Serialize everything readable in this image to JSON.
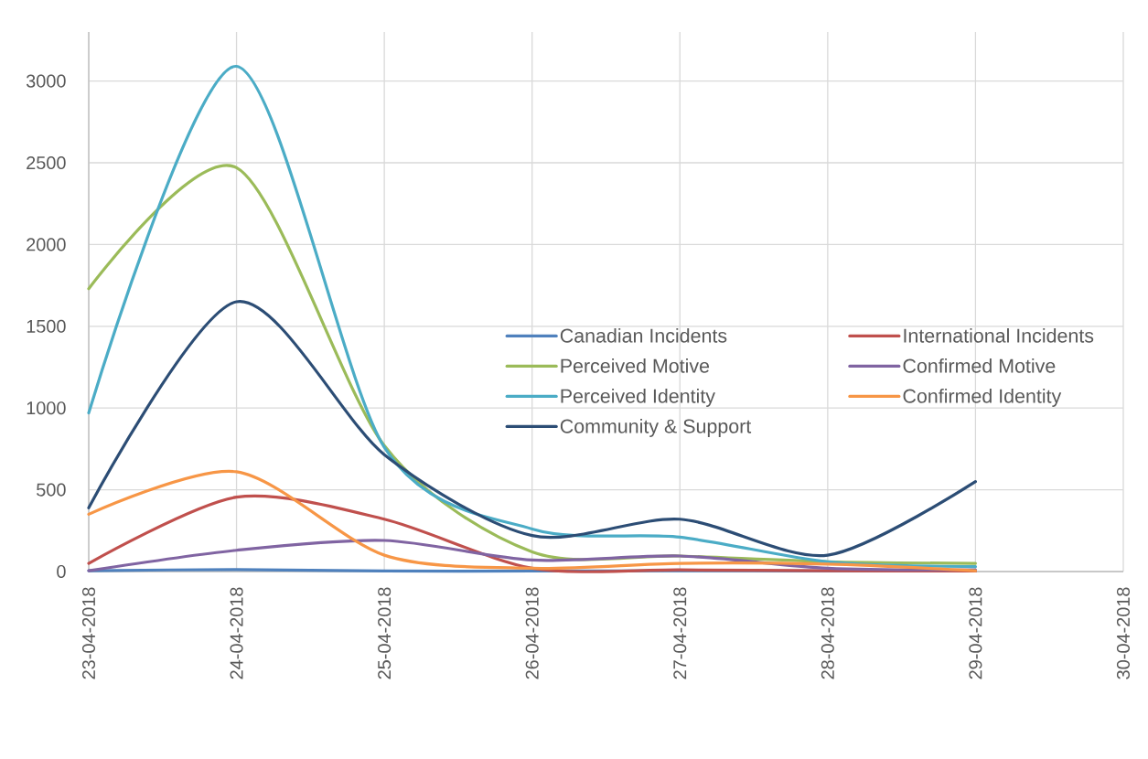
{
  "chart_data": {
    "type": "line",
    "x": [
      "2018-04-23",
      "2018-04-24",
      "2018-04-25",
      "2018-04-26",
      "2018-04-27",
      "2018-04-28",
      "2018-04-29"
    ],
    "series": [
      {
        "name": "Canadian Incidents",
        "color": "#4f81bd",
        "values": [
          5,
          12,
          3,
          3,
          5,
          3,
          3
        ]
      },
      {
        "name": "International Incidents",
        "color": "#c0504d",
        "values": [
          50,
          455,
          320,
          20,
          10,
          5,
          3
        ]
      },
      {
        "name": "Perceived Motive",
        "color": "#9bbb59",
        "values": [
          1730,
          2470,
          770,
          120,
          95,
          60,
          50
        ]
      },
      {
        "name": "Confirmed Motive",
        "color": "#8064a2",
        "values": [
          5,
          130,
          190,
          70,
          95,
          20,
          10
        ]
      },
      {
        "name": "Perceived Identity",
        "color": "#4bacc6",
        "values": [
          970,
          3090,
          760,
          260,
          210,
          60,
          30
        ]
      },
      {
        "name": "Confirmed Identity",
        "color": "#f79646",
        "values": [
          350,
          610,
          100,
          20,
          50,
          45,
          5
        ]
      },
      {
        "name": "Community & Support",
        "color": "#2c4d75",
        "values": [
          390,
          1650,
          715,
          220,
          320,
          100,
          550
        ]
      }
    ],
    "xlim": [
      "2018-04-23",
      "2018-04-30"
    ],
    "xticks": [
      {
        "value": "2018-04-23",
        "label": "23-04-2018"
      },
      {
        "value": "2018-04-24",
        "label": "24-04-2018"
      },
      {
        "value": "2018-04-25",
        "label": "25-04-2018"
      },
      {
        "value": "2018-04-26",
        "label": "26-04-2018"
      },
      {
        "value": "2018-04-27",
        "label": "27-04-2018"
      },
      {
        "value": "2018-04-28",
        "label": "28-04-2018"
      },
      {
        "value": "2018-04-29",
        "label": "29-04-2018"
      },
      {
        "value": "2018-04-30",
        "label": "30-04-2018"
      }
    ],
    "ylim": [
      0,
      3300
    ],
    "yticks": [
      0,
      500,
      1000,
      1500,
      2000,
      2500,
      3000
    ],
    "grid": true,
    "legend": "right"
  }
}
